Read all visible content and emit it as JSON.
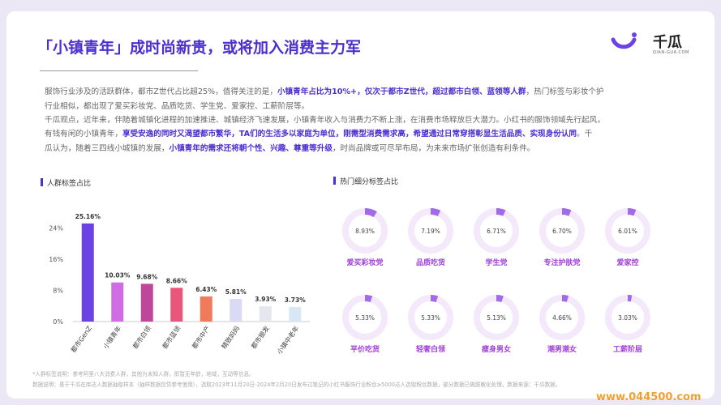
{
  "header": {
    "title": "「小镇青年」成时尚新贵，或将加入消费主力军",
    "logo_text": "千瓜",
    "logo_sub": "QIAN-GUA.COM"
  },
  "paragraph1": {
    "line1_a": "服饰行业涉及的活跃群体，都市Z世代占比超25%，值得关注的是，",
    "line1_b": "小镇青年占比为10%+，仅次于都市Z世代，超过都市白领、蓝领等人群",
    "line1_c": "，热门标签与彩妆个护",
    "line2": "行业相似，都出现了爱买彩妆党、品质吃货、学生党、爱家控、工薪阶层等。"
  },
  "paragraph2": {
    "line1": "千瓜观点，近年来，伴随着城镇化进程的加速推进、城镇经济飞速发展，小镇青年收入与消费力不断上涨，在消费市场释放巨大潜力。小红书的服饰领域先行起风，",
    "line2_a": "有钱有闲的小镇青年，",
    "line2_b": "享受安逸的同时又渴望都市繁华，TA们的生活多以家庭为单位，刚需型消费需求高，希望通过日常穿搭彰显生活品质、实现身份认同",
    "line2_c": "。千",
    "line3_a": "瓜认为，随着三四线小城镇的发展，",
    "line3_b": "小镇青年的需求还将朝个性、兴趣、尊重等升级",
    "line3_c": "，时尚品牌或可尽早布局，为未来市场扩张创造有利条件。"
  },
  "sections": {
    "left_title": "人群标签占比",
    "right_title": "热门细分标签占比"
  },
  "chart_data": [
    {
      "type": "bar",
      "title": "人群标签占比",
      "categories": [
        "都市GenZ",
        "小镇青年",
        "都市白领",
        "都市蓝领",
        "都市中产",
        "精致妈妈",
        "都市银发",
        "小镇中老年"
      ],
      "values": [
        25.16,
        10.03,
        9.68,
        8.66,
        6.43,
        5.81,
        3.93,
        3.73
      ],
      "value_labels": [
        "25.16%",
        "10.03%",
        "9.68%",
        "8.66%",
        "6.43%",
        "5.81%",
        "3.93%",
        "3.73%"
      ],
      "yticks": [
        "24%",
        "16%",
        "8%",
        "0%"
      ],
      "ytick_values": [
        24,
        16,
        8,
        0
      ],
      "ylim": [
        0,
        27
      ],
      "colors": [
        "#6b42e6",
        "#cf6ee4",
        "#c0469c",
        "#e8567a",
        "#f07a5a",
        "#d9daf5",
        "#e6e6ee",
        "#d8e6f5"
      ],
      "grid": false
    },
    {
      "type": "pie",
      "title": "热门细分标签占比",
      "labels": [
        "爱买彩妆党",
        "品质吃货",
        "学生党",
        "专注护肤党",
        "爱家控",
        "平价吃货",
        "轻奢白领",
        "瘦身男女",
        "潮男潮女",
        "工薪阶层"
      ],
      "values": [
        8.93,
        7.19,
        6.71,
        6.7,
        6.01,
        5.33,
        5.33,
        5.13,
        4.66,
        3.03
      ],
      "value_labels": [
        "8.93%",
        "7.19%",
        "6.71%",
        "6.70%",
        "6.01%",
        "5.33%",
        "5.33%",
        "5.13%",
        "4.66%",
        "3.03%"
      ],
      "ring_color": "#a06ae8",
      "track_color": "#f3e9fb"
    }
  ],
  "footer": {
    "note1": "*人群标签说明：参考阿里八大消费人群，其他为未知人群，即暂无年龄，地域，互动等信息。",
    "note2": "数据说明：基于千瓜在库达人数据抽取样本（抽样数据仅供参考使用），选取2023年11月20日-2024年2月20日发布过笔记的小红书服饰行业粉丝≥5000达人选取粉丝数据，部分数据已做脱敏化处理。数据来源：千瓜数据。"
  },
  "watermark": "www.044500.com",
  "colors": {
    "accent": "#4b2fd0",
    "background": "#ebe7f5"
  }
}
